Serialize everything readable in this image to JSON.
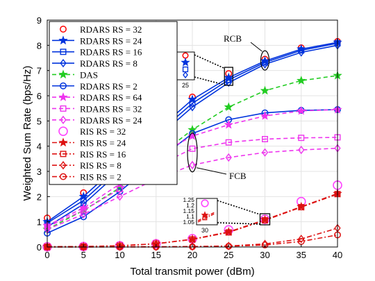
{
  "chart_data": {
    "type": "line",
    "xlabel": "Total transmit power (dBm)",
    "ylabel": "Weighted Sum Rate (bps/Hz)",
    "xlim": [
      0,
      40
    ],
    "ylim": [
      0,
      9
    ],
    "xticks": [
      0,
      5,
      10,
      15,
      20,
      25,
      30,
      35,
      40
    ],
    "yticks": [
      0,
      1,
      2,
      3,
      4,
      5,
      6,
      7,
      8,
      9
    ],
    "grid": true,
    "legend_position": "top-left",
    "x": [
      0,
      5,
      10,
      15,
      20,
      25,
      30,
      35,
      40
    ],
    "series": [
      {
        "name": "RDARS RS = 32",
        "color": "#ff0000",
        "marker": "circle-open",
        "line": "none",
        "values": [
          1.15,
          2.15,
          3.45,
          4.75,
          5.95,
          6.88,
          7.45,
          7.9,
          8.15
        ]
      },
      {
        "name": "RDARS RS = 24",
        "color": "#0033dd",
        "marker": "star-filled",
        "line": "solid",
        "values": [
          1.0,
          2.0,
          3.3,
          4.6,
          5.85,
          6.72,
          7.38,
          7.85,
          8.12
        ]
      },
      {
        "name": "RDARS RS = 16",
        "color": "#0033dd",
        "marker": "square-open",
        "line": "solid",
        "values": [
          0.95,
          1.85,
          3.15,
          4.45,
          5.7,
          6.63,
          7.32,
          7.8,
          8.08
        ]
      },
      {
        "name": "RDARS RS = 8",
        "color": "#0033dd",
        "marker": "diamond-open",
        "line": "solid",
        "values": [
          0.8,
          1.7,
          3.0,
          4.3,
          5.55,
          6.52,
          7.25,
          7.72,
          8.0
        ]
      },
      {
        "name": "DAS",
        "color": "#22cc22",
        "marker": "star-filled",
        "line": "dashed",
        "values": [
          0.7,
          1.45,
          2.35,
          3.55,
          4.65,
          5.55,
          6.2,
          6.6,
          6.8
        ]
      },
      {
        "name": "RDARS RS = 2",
        "color": "#0033dd",
        "marker": "circle-open",
        "line": "solid",
        "values": [
          0.55,
          1.2,
          2.2,
          3.4,
          4.5,
          5.05,
          5.32,
          5.42,
          5.45
        ]
      },
      {
        "name": "RDARS RS = 64",
        "color": "#ee33ee",
        "marker": "star-filled",
        "line": "dashed",
        "values": [
          0.85,
          1.55,
          2.5,
          3.6,
          4.4,
          4.85,
          5.2,
          5.4,
          5.45
        ]
      },
      {
        "name": "RDARS RS = 32",
        "color": "#ee33ee",
        "marker": "square-open",
        "line": "dashed",
        "values": [
          0.8,
          1.45,
          2.3,
          3.2,
          3.9,
          4.15,
          4.28,
          4.33,
          4.35
        ]
      },
      {
        "name": "RDARS RS = 24",
        "color": "#ee33ee",
        "marker": "diamond-open",
        "line": "dashed",
        "values": [
          0.7,
          1.3,
          2.0,
          2.7,
          3.25,
          3.55,
          3.75,
          3.85,
          3.92
        ]
      },
      {
        "name": "RIS RS = 32",
        "color": "#ff44ff",
        "marker": "circle-open-large",
        "line": "none",
        "values": [
          0.01,
          0.02,
          0.05,
          0.13,
          0.33,
          0.68,
          1.1,
          1.8,
          2.45
        ]
      },
      {
        "name": "RIS RS = 24",
        "color": "#dd1111",
        "marker": "star-filled",
        "line": "dashdot",
        "values": [
          0.01,
          0.02,
          0.05,
          0.13,
          0.31,
          0.6,
          1.08,
          1.6,
          2.12
        ]
      },
      {
        "name": "RIS RS = 16",
        "color": "#dd1111",
        "marker": "square-open",
        "line": "dashdot",
        "values": [
          0.01,
          0.02,
          0.05,
          0.13,
          0.3,
          0.58,
          1.06,
          1.58,
          2.1
        ]
      },
      {
        "name": "RIS RS = 8",
        "color": "#dd1111",
        "marker": "diamond-open",
        "line": "dashdot",
        "values": [
          0.0,
          0.0,
          0.01,
          0.01,
          0.02,
          0.04,
          0.12,
          0.32,
          0.75
        ]
      },
      {
        "name": "RIS RS = 2",
        "color": "#dd1111",
        "marker": "circle-open",
        "line": "dashdot",
        "values": [
          0.0,
          0.0,
          0.0,
          0.0,
          0.01,
          0.03,
          0.08,
          0.22,
          0.48
        ]
      }
    ],
    "annotations": [
      {
        "text": "RCB"
      },
      {
        "text": "FCB"
      }
    ],
    "insets": [
      {
        "yticks": [
          "6.8",
          "6.6"
        ],
        "xtick": "25"
      },
      {
        "yticks": [
          "1.25",
          "1.2",
          "1.15",
          "1.1",
          "1.05"
        ],
        "xtick": "30"
      }
    ]
  }
}
